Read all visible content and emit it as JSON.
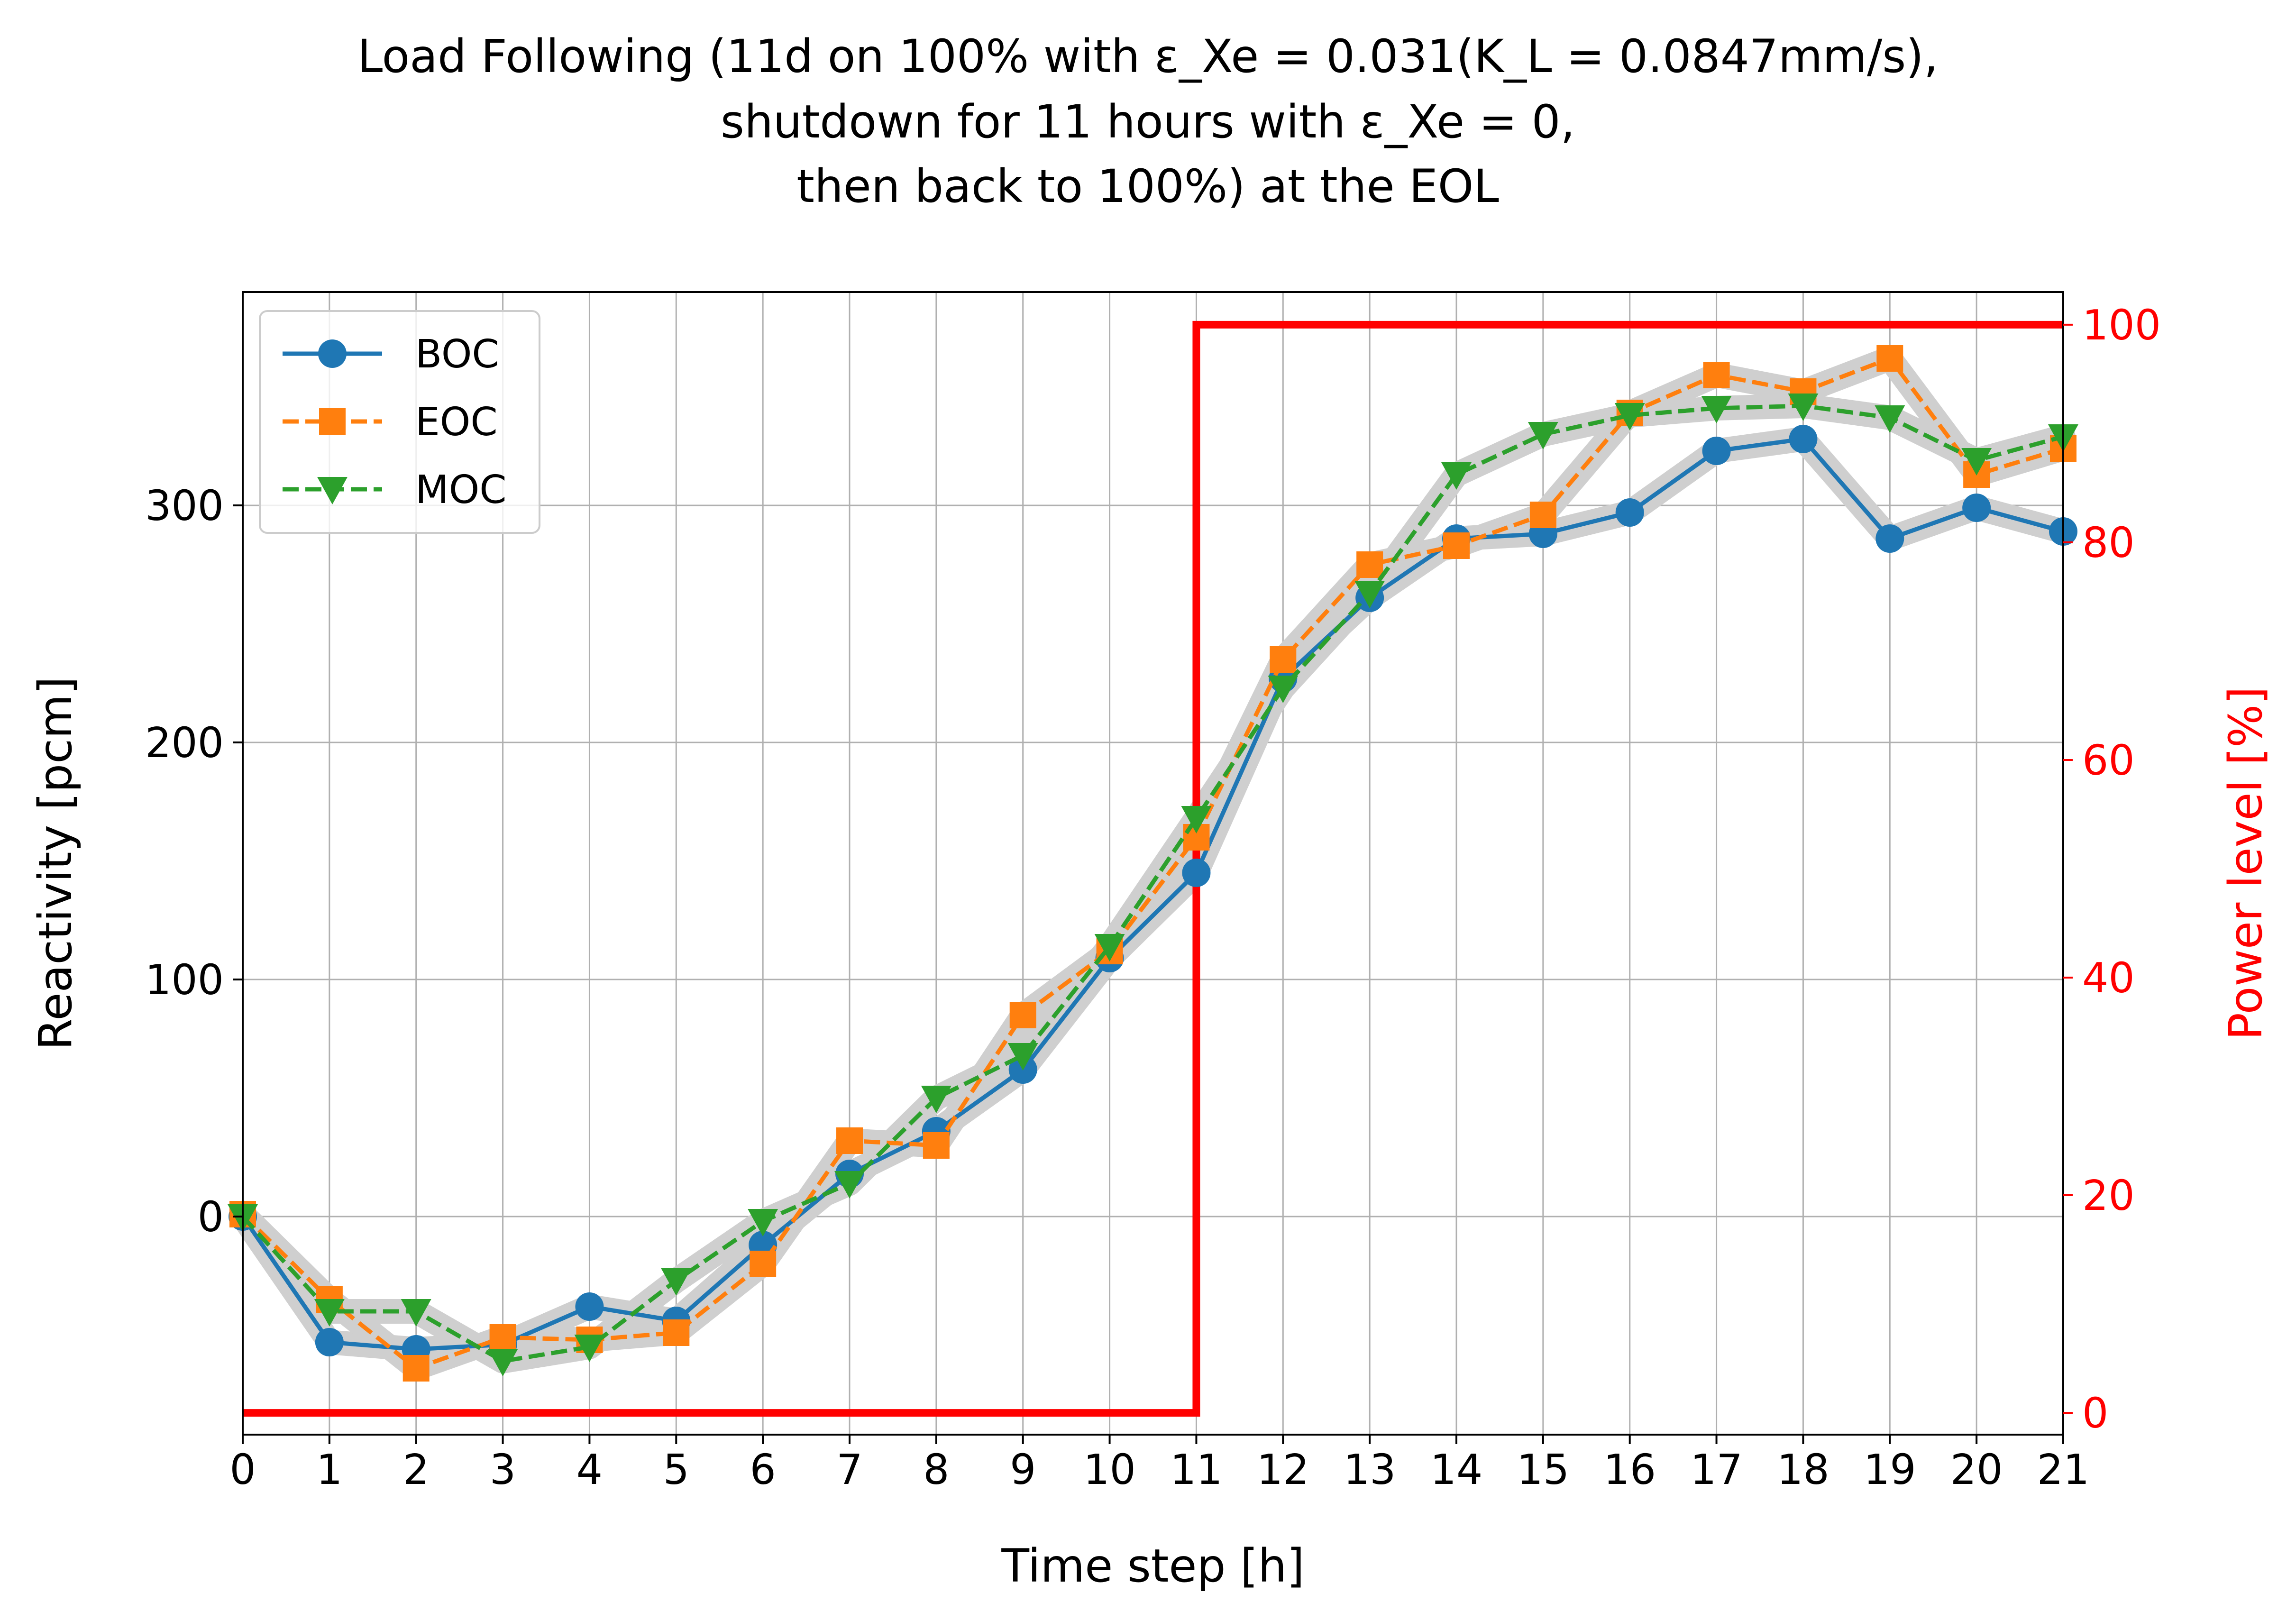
{
  "chart_data": {
    "type": "line",
    "title_lines": [
      "Load Following (11d on 100% with ε_Xe = 0.031(K_L = 0.0847mm/s),",
      "shutdown for 11 hours with ε_Xe = 0,",
      "then back to 100%) at the EOL"
    ],
    "xlabel": "Time step [h]",
    "ylabel": "Reactivity [pcm]",
    "y2label": "Power level [%]",
    "xlim": [
      0,
      21
    ],
    "ylim": [
      -92,
      390
    ],
    "y2lim": [
      -2,
      103
    ],
    "x_ticks": [
      "0",
      "1",
      "2",
      "3",
      "4",
      "5",
      "6",
      "7",
      "8",
      "9",
      "10",
      "11",
      "12",
      "13",
      "14",
      "15",
      "16",
      "17",
      "18",
      "19",
      "20",
      "21"
    ],
    "y_ticks": [
      "0",
      "100",
      "200",
      "300"
    ],
    "y2_ticks": [
      "0",
      "20",
      "40",
      "60",
      "80",
      "100"
    ],
    "grid": true,
    "legend_position": "top-left",
    "x": [
      0,
      1,
      2,
      3,
      4,
      5,
      6,
      7,
      8,
      9,
      10,
      11,
      12,
      13,
      14,
      15,
      16,
      17,
      18,
      19,
      20,
      21
    ],
    "series": [
      {
        "name": "BOC",
        "color": "#1f77b4",
        "marker": "circle",
        "linestyle": "solid",
        "values": [
          0,
          -53,
          -56,
          -54,
          -38,
          -44,
          -12,
          18,
          36,
          62,
          109,
          145,
          227,
          261,
          286,
          288,
          297,
          323,
          328,
          286,
          299,
          289
        ]
      },
      {
        "name": "EOC",
        "color": "#ff7f0e",
        "marker": "square",
        "linestyle": "dashed",
        "values": [
          1,
          -35,
          -64,
          -51,
          -52,
          -49,
          -20,
          32,
          30,
          85,
          112,
          160,
          235,
          275,
          283,
          296,
          339,
          355,
          348,
          362,
          313,
          324
        ]
      },
      {
        "name": "MOC",
        "color": "#2ca02c",
        "marker": "triangle-down",
        "linestyle": "dashed",
        "values": [
          0,
          -40,
          -40,
          -61,
          -55,
          -27,
          -2,
          14,
          50,
          68,
          114,
          168,
          223,
          263,
          313,
          330,
          338,
          341,
          342,
          337,
          319,
          329
        ]
      }
    ],
    "power_series": {
      "color": "#ff0000",
      "axis": "right",
      "x": [
        0,
        11,
        11,
        21
      ],
      "values": [
        0,
        0,
        100,
        100
      ]
    }
  }
}
